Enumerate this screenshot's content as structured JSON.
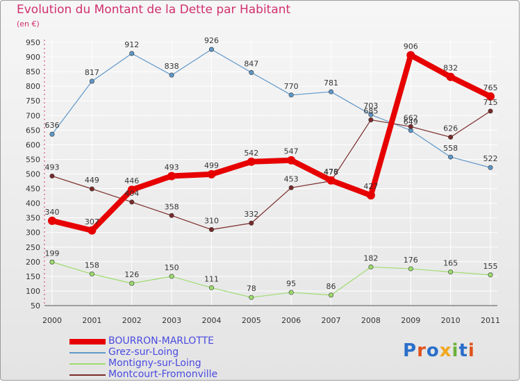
{
  "header": {
    "title": "Evolution du Montant de la Dette par Habitant",
    "subtitle": "(en €)"
  },
  "logo": {
    "text": "Proxiti",
    "letter_colors": [
      "#2a6fc9",
      "#e0531d",
      "#2a6fc9",
      "#f2a81d",
      "#6ab23a",
      "#2a6fc9",
      "#e0531d"
    ]
  },
  "chart_data": {
    "type": "line",
    "x": [
      "2000",
      "2001",
      "2002",
      "2003",
      "2004",
      "2005",
      "2006",
      "2007",
      "2008",
      "2009",
      "2010",
      "2011"
    ],
    "ylim": [
      50,
      950
    ],
    "yticks": [
      50,
      100,
      150,
      200,
      250,
      300,
      350,
      400,
      450,
      500,
      550,
      600,
      650,
      700,
      750,
      800,
      850,
      900,
      950
    ],
    "grid": true,
    "legend_position": "bottom-left",
    "series": [
      {
        "name": "BOURRON-MARLOTTE",
        "color": "#e60000",
        "width": 8,
        "values": [
          340,
          307,
          446,
          493,
          499,
          542,
          547,
          478,
          427,
          906,
          832,
          765
        ]
      },
      {
        "name": "Grez-sur-Loing",
        "color": "#5f97c8",
        "width": 1.2,
        "values": [
          636,
          817,
          912,
          838,
          926,
          847,
          770,
          781,
          703,
          649,
          558,
          522
        ]
      },
      {
        "name": "Montigny-sur-Loing",
        "color": "#9ddc6e",
        "width": 1.2,
        "values": [
          199,
          158,
          126,
          150,
          111,
          78,
          95,
          86,
          182,
          176,
          165,
          155
        ]
      },
      {
        "name": "Montcourt-Fromonville",
        "color": "#7a2a2a",
        "width": 1.2,
        "values": [
          493,
          449,
          404,
          358,
          310,
          332,
          453,
          476,
          685,
          662,
          626,
          715
        ]
      }
    ]
  }
}
